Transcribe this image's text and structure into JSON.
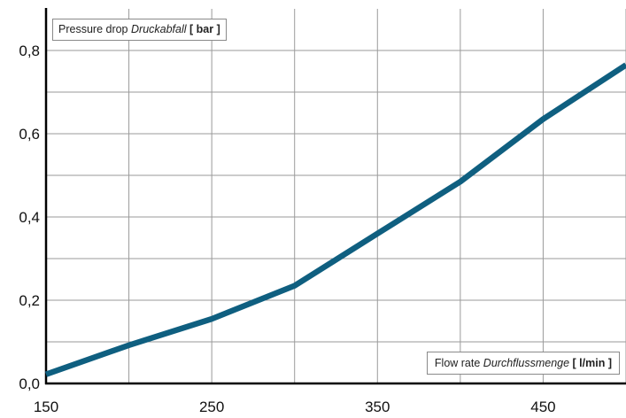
{
  "chart_data": {
    "type": "line",
    "x": [
      150,
      200,
      250,
      300,
      350,
      400,
      450,
      500
    ],
    "series": [
      {
        "values": [
          0.022,
          0.092,
          0.155,
          0.235,
          0.36,
          0.485,
          0.635,
          0.765
        ]
      }
    ],
    "xlim": [
      150,
      500
    ],
    "ylim": [
      0,
      0.9
    ],
    "x_ticks": [
      150,
      250,
      350,
      450
    ],
    "x_tick_labels": [
      "150",
      "250",
      "350",
      "450"
    ],
    "y_ticks": [
      0,
      0.2,
      0.4,
      0.6,
      0.8
    ],
    "y_tick_labels": [
      "0,0",
      "0,2",
      "0,4",
      "0,6",
      "0,8"
    ],
    "x_grid": [
      200,
      250,
      300,
      350,
      400,
      450,
      500
    ],
    "y_grid": [
      0.1,
      0.2,
      0.3,
      0.4,
      0.5,
      0.6,
      0.7,
      0.8
    ],
    "grid": true,
    "line_color": "#0f5f80",
    "ylabel": {
      "en": "Pressure drop",
      "de": "Druckabfall",
      "unit": "[ bar ]"
    },
    "xlabel": {
      "en": "Flow rate",
      "de": "Durchflussmenge",
      "unit": "[ l/min ]"
    }
  }
}
